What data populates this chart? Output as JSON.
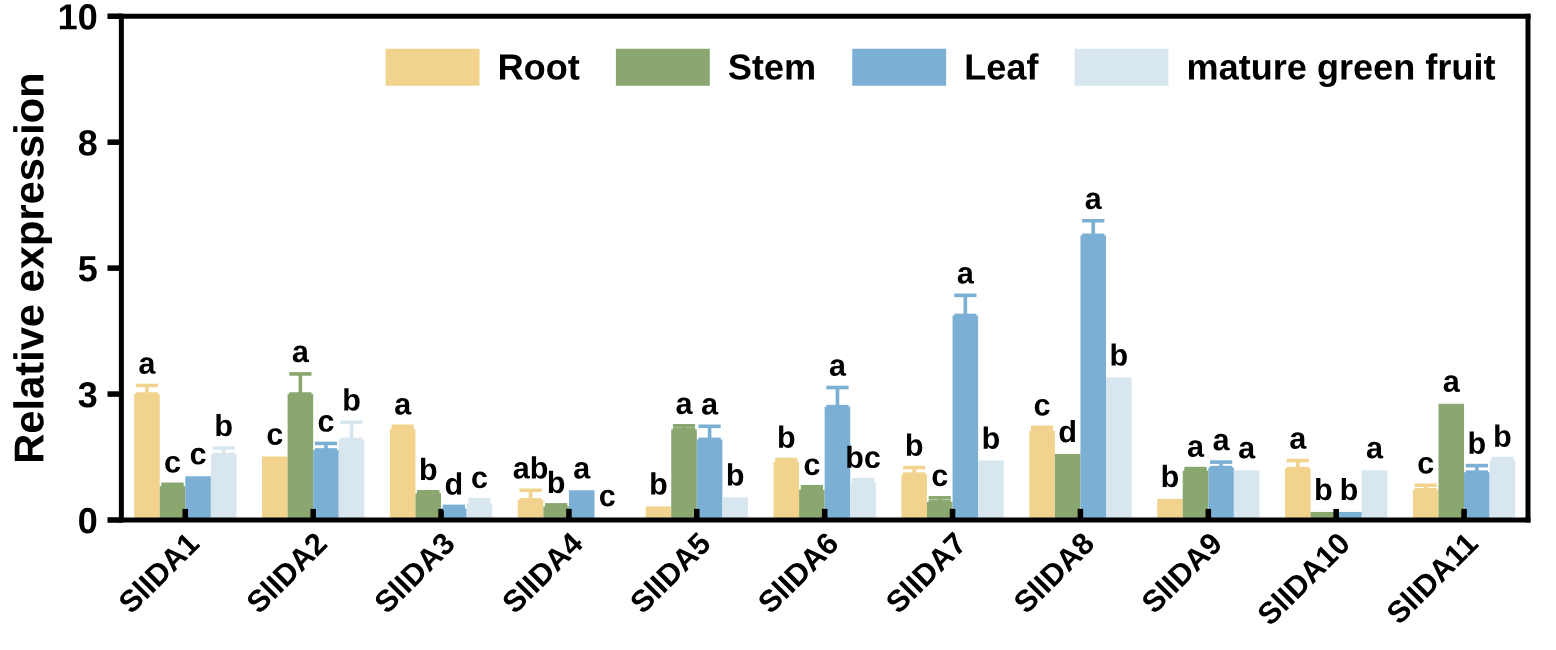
{
  "chart_data": {
    "type": "bar",
    "ylabel": "Relative expression",
    "categories": [
      "SlIDA1",
      "SlIDA2",
      "SlIDA3",
      "SlIDA4",
      "SlIDA5",
      "SlIDA6",
      "SlIDA7",
      "SlIDA8",
      "SlIDA9",
      "SlIDA10",
      "SlIDA11"
    ],
    "series": [
      {
        "name": "Root",
        "color": "#f2d38e",
        "values": [
          2.5,
          1.26,
          1.8,
          0.4,
          0.27,
          1.15,
          0.91,
          1.77,
          0.42,
          1.02,
          0.6
        ],
        "errors": [
          0.17,
          null,
          0.06,
          0.19,
          null,
          0.05,
          0.13,
          0.07,
          null,
          0.16,
          0.09
        ],
        "value_labels": [
          "a",
          "c",
          "a",
          "ab",
          "b",
          "b",
          "b",
          "c",
          "b",
          "a",
          "c"
        ]
      },
      {
        "name": "Stem",
        "color": "#8aa76f",
        "values": [
          0.67,
          2.5,
          0.53,
          0.27,
          1.8,
          0.6,
          0.36,
          1.31,
          0.98,
          0.16,
          2.31
        ],
        "errors": [
          0.04,
          0.4,
          0.03,
          0.03,
          0.07,
          0.06,
          0.08,
          null,
          0.04,
          null,
          null
        ],
        "value_labels": [
          "c",
          "a",
          "b",
          "b",
          "a",
          "c",
          "c",
          "d",
          "a",
          "b",
          "a"
        ]
      },
      {
        "name": "Leaf",
        "color": "#7bafd4",
        "values": [
          0.87,
          1.39,
          0.23,
          0.59,
          1.6,
          2.25,
          4.06,
          5.65,
          1.04,
          0.16,
          0.95
        ],
        "errors": [
          null,
          0.13,
          0.04,
          null,
          0.26,
          0.38,
          0.4,
          0.29,
          0.11,
          null,
          0.13
        ],
        "value_labels": [
          "c",
          "c",
          "d",
          "a",
          "a",
          "a",
          "a",
          "a",
          "a",
          "b",
          "b"
        ]
      },
      {
        "name": "mature green fruit",
        "color": "#d8e6f0",
        "values": [
          1.3,
          1.6,
          0.32,
          0.04,
          0.45,
          0.75,
          1.18,
          2.83,
          0.99,
          0.99,
          1.17
        ],
        "errors": [
          0.13,
          0.34,
          0.08,
          null,
          null,
          0.05,
          null,
          null,
          null,
          null,
          0.05
        ],
        "value_labels": [
          "b",
          "b",
          "c",
          "c",
          "b",
          "bc",
          "b",
          "b",
          "a",
          "a",
          "b"
        ]
      }
    ],
    "ylim": [
      0,
      10
    ],
    "yticks": [
      0,
      {
        "value": 2.5,
        "label": "3"
      },
      5,
      {
        "value": 7.5,
        "label": "8"
      },
      10
    ],
    "legend": "top right",
    "grid": false
  }
}
